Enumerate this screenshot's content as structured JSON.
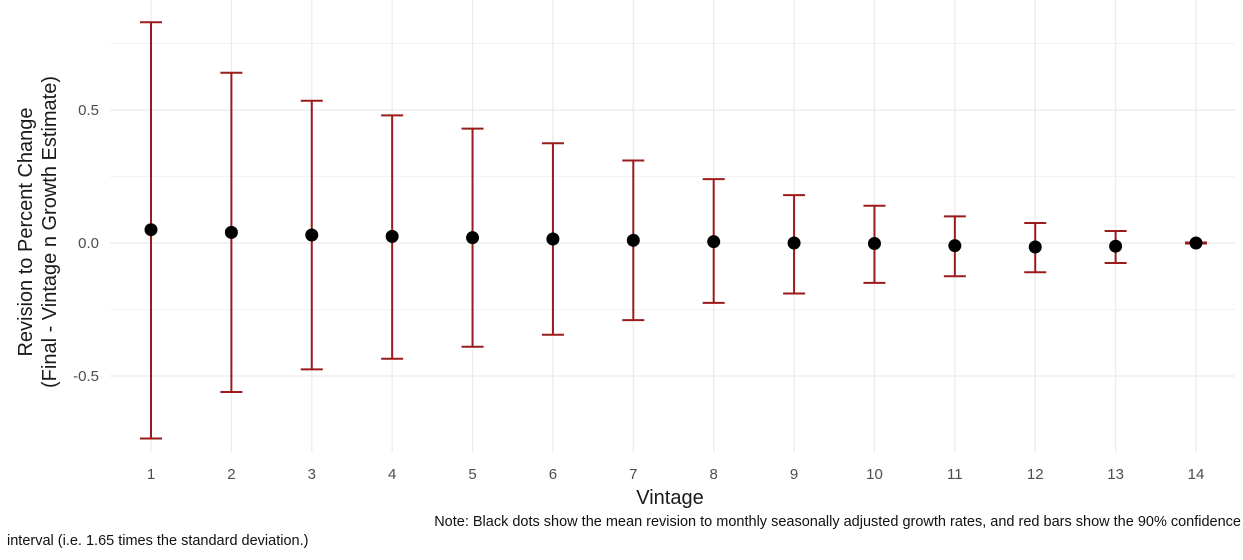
{
  "chart_data": {
    "type": "errorbar",
    "xlabel": "Vintage",
    "ylabel_line1": "Revision to Percent Change",
    "ylabel_line2": "(Final - Vintage n Growth Estimate)",
    "x": [
      1,
      2,
      3,
      4,
      5,
      6,
      7,
      8,
      9,
      10,
      11,
      12,
      13,
      14
    ],
    "x_ticks": [
      "1",
      "2",
      "3",
      "4",
      "5",
      "6",
      "7",
      "8",
      "9",
      "10",
      "11",
      "12",
      "13",
      "14"
    ],
    "y_ticks": [
      {
        "value": -0.5,
        "label": "-0.5"
      },
      {
        "value": 0.0,
        "label": "0.0"
      },
      {
        "value": 0.5,
        "label": "0.5"
      }
    ],
    "ylim": [
      -0.75,
      0.84
    ],
    "mean": [
      0.05,
      0.04,
      0.03,
      0.025,
      0.02,
      0.015,
      0.01,
      0.005,
      0.0,
      -0.002,
      -0.01,
      -0.015,
      -0.012,
      0.0
    ],
    "upper": [
      0.83,
      0.64,
      0.535,
      0.48,
      0.43,
      0.375,
      0.31,
      0.24,
      0.18,
      0.14,
      0.1,
      0.075,
      0.045,
      0.002
    ],
    "lower": [
      -0.735,
      -0.56,
      -0.475,
      -0.435,
      -0.39,
      -0.345,
      -0.29,
      -0.225,
      -0.19,
      -0.15,
      -0.125,
      -0.11,
      -0.075,
      -0.002
    ],
    "grid": true,
    "colors": {
      "point": "#000000",
      "errorbar": "#9B1B1B",
      "grid": "#EBEBEB",
      "text": "#4D4D4D"
    }
  },
  "note": {
    "line1": "Note: Black dots show the mean revision to monthly seasonally adjusted growth rates, and red bars show the 90% confidence",
    "line2": "interval (i.e. 1.65 times the standard deviation.)"
  }
}
